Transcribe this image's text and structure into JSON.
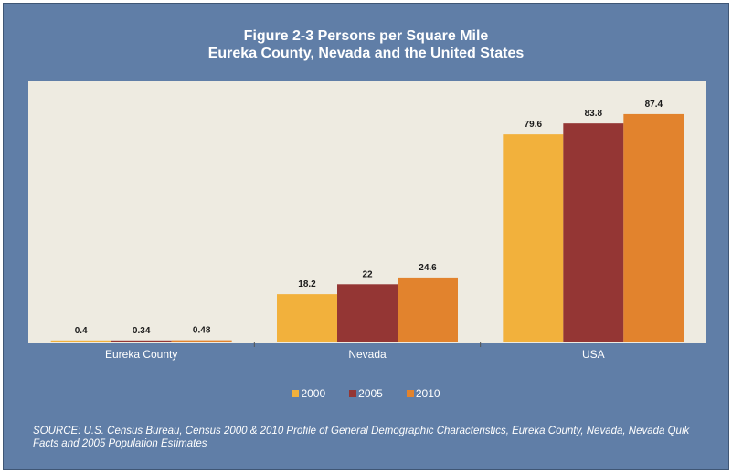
{
  "chart_data": {
    "type": "bar",
    "title": "Figure 2-3 Persons per Square Mile",
    "subtitle": "Eureka County, Nevada and the United States",
    "categories": [
      "Eureka County",
      "Nevada",
      "USA"
    ],
    "series": [
      {
        "name": "2000",
        "color": "#f2b13c",
        "values": [
          0.4,
          18.2,
          79.6
        ],
        "labels": [
          "0.4",
          "18.2",
          "79.6"
        ]
      },
      {
        "name": "2005",
        "color": "#943634",
        "values": [
          0.34,
          22,
          83.8
        ],
        "labels": [
          "0.34",
          "22",
          "83.8"
        ]
      },
      {
        "name": "2010",
        "color": "#e2832d",
        "values": [
          0.48,
          24.6,
          87.4
        ],
        "labels": [
          "0.48",
          "24.6",
          "87.4"
        ]
      }
    ],
    "ylim": [
      0,
      100
    ],
    "grid": false,
    "legend_position": "bottom",
    "source": "SOURCE: U.S. Census Bureau, Census 2000 & 2010 Profile of General Demographic Characteristics, Eureka County, Nevada, Nevada Quik Facts and 2005 Population Estimates"
  }
}
